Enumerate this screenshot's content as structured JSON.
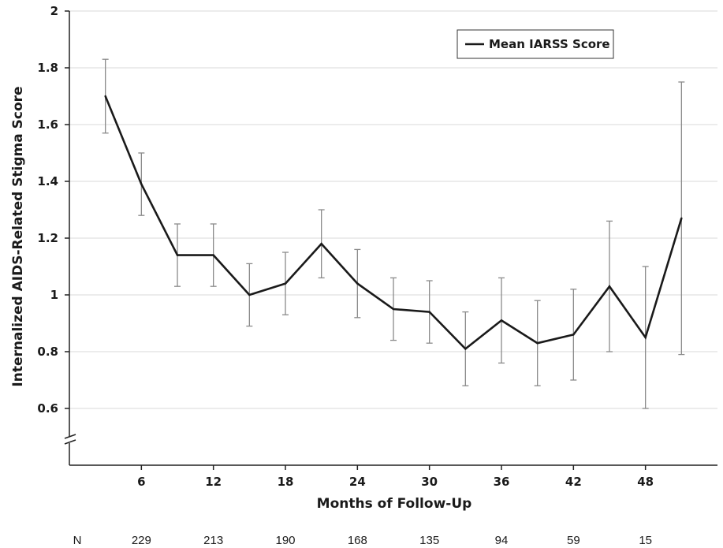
{
  "chart_data": {
    "type": "line",
    "xlabel": "Months of Follow-Up",
    "ylabel": "Internalized AIDS-Related Stigma Score",
    "ylim": [
      0.6,
      2.0
    ],
    "yticks": [
      "0.6",
      "0.8",
      "1",
      "1.2",
      "1.4",
      "1.6",
      "1.8",
      "2"
    ],
    "axis_break": true,
    "grid": "horizontal",
    "legend_position": "top-right",
    "x_tick_labels": [
      "6",
      "12",
      "18",
      "24",
      "30",
      "36",
      "42",
      "48"
    ],
    "x": [
      3,
      6,
      9,
      12,
      15,
      18,
      21,
      24,
      27,
      30,
      33,
      36,
      39,
      42,
      45,
      48,
      51
    ],
    "series": [
      {
        "name": "Mean IARSS Score",
        "color": "#1a1a1a",
        "values": [
          1.7,
          1.39,
          1.14,
          1.14,
          1.0,
          1.04,
          1.18,
          1.04,
          0.95,
          0.94,
          0.81,
          0.91,
          0.83,
          0.86,
          1.03,
          0.85,
          1.27
        ],
        "error_upper": [
          1.83,
          1.5,
          1.25,
          1.25,
          1.11,
          1.15,
          1.3,
          1.16,
          1.06,
          1.05,
          0.94,
          1.06,
          0.98,
          1.02,
          1.26,
          1.1,
          1.75
        ],
        "error_lower": [
          1.57,
          1.28,
          1.03,
          1.03,
          0.89,
          0.93,
          1.06,
          0.92,
          0.84,
          0.83,
          0.68,
          0.76,
          0.68,
          0.7,
          0.8,
          0.6,
          0.79
        ]
      }
    ],
    "n_row": {
      "label": "N",
      "values": [
        "229",
        "213",
        "190",
        "168",
        "135",
        "94",
        "59",
        "15"
      ]
    }
  }
}
